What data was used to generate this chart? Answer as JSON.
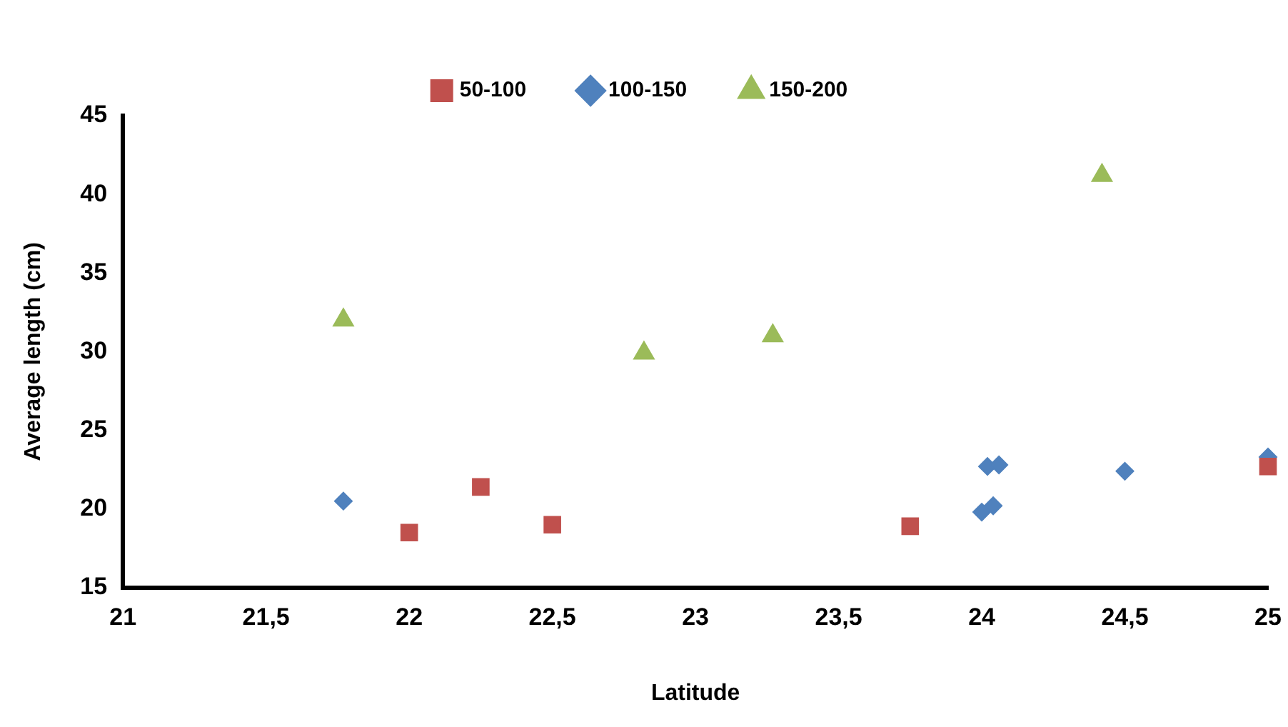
{
  "chart_data": {
    "type": "scatter",
    "xlabel": "Latitude",
    "ylabel": "Average length (cm)",
    "xlim": [
      21,
      25
    ],
    "xticks": [
      {
        "value": 21,
        "label": "21"
      },
      {
        "value": 21.5,
        "label": "21,5"
      },
      {
        "value": 22,
        "label": "22"
      },
      {
        "value": 22.5,
        "label": "22,5"
      },
      {
        "value": 23,
        "label": "23"
      },
      {
        "value": 23.5,
        "label": "23,5"
      },
      {
        "value": 24,
        "label": "24"
      },
      {
        "value": 24.5,
        "label": "24,5"
      },
      {
        "value": 25,
        "label": "25"
      }
    ],
    "ylim": [
      15,
      45
    ],
    "yticks": [
      15,
      20,
      25,
      30,
      35,
      40,
      45
    ],
    "grid": false,
    "legend": "top",
    "series": [
      {
        "name": "50-100",
        "color": "#c0504d",
        "marker": "square",
        "x": [
          22,
          22.25,
          22.5,
          23.75,
          25
        ],
        "values": [
          18.5,
          21.4,
          19,
          18.9,
          22.7
        ]
      },
      {
        "name": "100-150",
        "color": "#4f81bd",
        "marker": "diamond",
        "x": [
          21.77,
          24.02,
          24.06,
          24.04,
          24,
          24.5,
          25
        ],
        "values": [
          20.5,
          22.7,
          22.8,
          20.2,
          19.8,
          22.4,
          23.3
        ]
      },
      {
        "name": "150-200",
        "color": "#9bbb59",
        "marker": "triangle",
        "x": [
          21.77,
          22.82,
          23.27,
          24.42
        ],
        "values": [
          32,
          29.9,
          31,
          41.2
        ]
      }
    ]
  }
}
